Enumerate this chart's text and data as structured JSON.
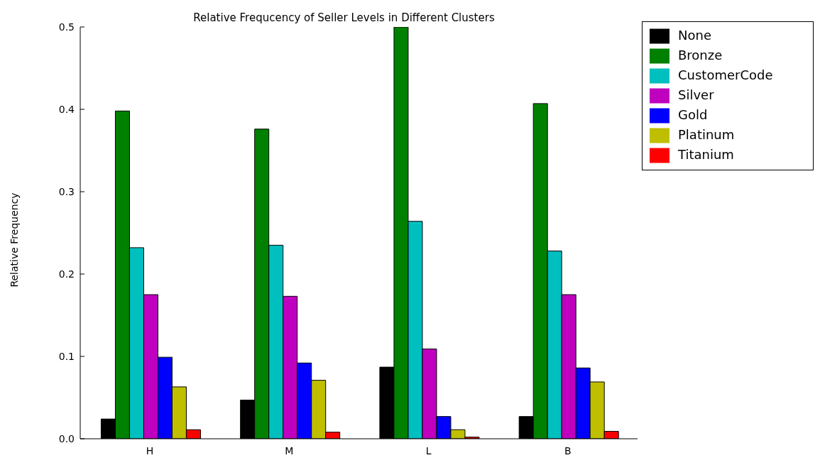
{
  "chart_data": {
    "type": "bar",
    "title": "Relative Frequcency of Seller Levels in Different Clusters",
    "ylabel": "Relative Frequency",
    "categories": [
      "H",
      "M",
      "L",
      "B"
    ],
    "series": [
      {
        "name": "None",
        "color": "#000000",
        "values": [
          0.024,
          0.047,
          0.087,
          0.027
        ]
      },
      {
        "name": "Bronze",
        "color": "#008000",
        "values": [
          0.398,
          0.376,
          0.5,
          0.407
        ]
      },
      {
        "name": "CustomerCode",
        "color": "#00bfbf",
        "values": [
          0.232,
          0.235,
          0.264,
          0.228
        ]
      },
      {
        "name": "Silver",
        "color": "#bf00bf",
        "values": [
          0.175,
          0.173,
          0.109,
          0.175
        ]
      },
      {
        "name": "Gold",
        "color": "#0000ff",
        "values": [
          0.099,
          0.092,
          0.027,
          0.086
        ]
      },
      {
        "name": "Platinum",
        "color": "#bfbf00",
        "values": [
          0.063,
          0.071,
          0.011,
          0.069
        ]
      },
      {
        "name": "Titanium",
        "color": "#ff0000",
        "values": [
          0.011,
          0.008,
          0.002,
          0.009
        ]
      }
    ],
    "ylim": [
      0,
      0.5
    ],
    "yticks": [
      {
        "value": 0,
        "label": "0.0"
      },
      {
        "value": 0.1,
        "label": "0.1"
      },
      {
        "value": 0.2,
        "label": "0.2"
      },
      {
        "value": 0.3,
        "label": "0.3"
      },
      {
        "value": 0.4,
        "label": "0.4"
      },
      {
        "value": 0.5,
        "label": "0.5"
      }
    ],
    "grid": false,
    "legend": "right"
  }
}
